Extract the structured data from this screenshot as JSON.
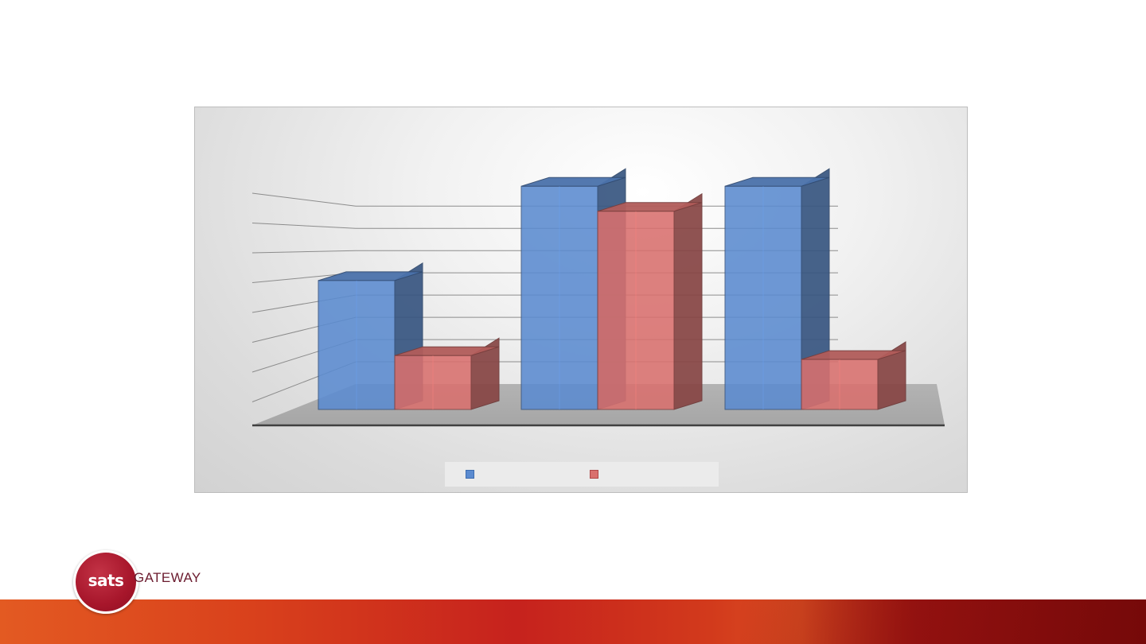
{
  "chart_data": {
    "type": "bar",
    "subtype": "3d-clustered-column",
    "title": "",
    "xlabel": "",
    "ylabel": "",
    "categories": [
      "",
      "",
      ""
    ],
    "series": [
      {
        "color": "#5b8bd0",
        "values": [
          6.7,
          11.6,
          11.6
        ]
      },
      {
        "color": "#d9706e",
        "values": [
          2.8,
          10.3,
          2.6
        ]
      }
    ],
    "ylim": [
      0,
      12
    ],
    "gridlines": 12,
    "grid": true,
    "legend": "bottom"
  },
  "colors": {
    "series_blue": "#5b8bd0",
    "series_red": "#d9706e",
    "footer_red": "#c6221d",
    "footer_orange": "#e35a22"
  },
  "logo": {
    "mark": "sats",
    "word": "GATEWAY"
  }
}
